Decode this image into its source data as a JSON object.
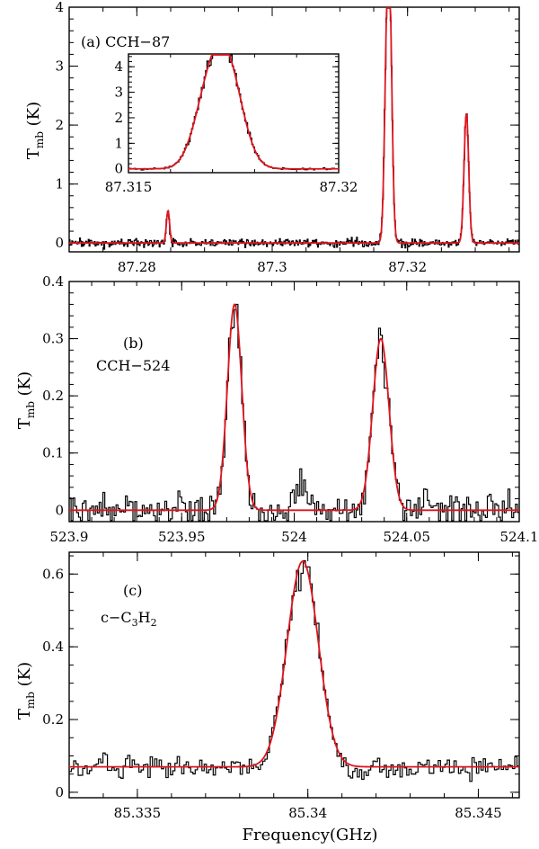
{
  "figure": {
    "xlabel": "Frequency(GHz)",
    "ylabel_main": "T",
    "ylabel_sub": "mb",
    "ylabel_unit": " (K)"
  },
  "colors": {
    "observed": "#000000",
    "fit": "#e0141e"
  },
  "chart_data": [
    {
      "id": "a",
      "type": "line",
      "label": "(a)  CCH−87",
      "xlim": [
        87.27,
        87.3365
      ],
      "ylim": [
        -0.15,
        4.0
      ],
      "xticks": [
        87.28,
        87.3,
        87.32
      ],
      "xtick_labels": [
        "87.28",
        "87.3",
        "87.32"
      ],
      "yticks": [
        0,
        1,
        2,
        3,
        4
      ],
      "ytick_labels": [
        "0",
        "1",
        "2",
        "3",
        "4"
      ],
      "noise_rms": 0.035,
      "baseline": 0.0,
      "lines": [
        {
          "center": 87.2846,
          "amp": 0.55,
          "fwhm": 0.00055
        },
        {
          "center": 87.31688,
          "amp": 2.3,
          "fwhm": 0.0008
        },
        {
          "center": 87.31735,
          "amp": 3.8,
          "fwhm": 0.00085
        },
        {
          "center": 87.32869,
          "amp": 2.2,
          "fwhm": 0.0008
        }
      ],
      "inset": {
        "xlim": [
          87.315,
          87.32
        ],
        "ylim": [
          -0.15,
          4.5
        ],
        "xticks": [
          87.315,
          87.32
        ],
        "xtick_labels": [
          "87.315",
          "87.32"
        ],
        "yticks": [
          0,
          1,
          2,
          3,
          4
        ],
        "ytick_labels": [
          "0",
          "1",
          "2",
          "3",
          "4"
        ]
      },
      "series": [
        {
          "name": "observed",
          "style": "histogram"
        },
        {
          "name": "gaussian fit",
          "style": "line"
        }
      ]
    },
    {
      "id": "b",
      "type": "line",
      "label_line1": "(b)",
      "label_line2": "CCH−524",
      "xlim": [
        523.9,
        524.1
      ],
      "ylim": [
        -0.02,
        0.4
      ],
      "xticks": [
        523.9,
        523.95,
        524.0,
        524.05,
        524.1
      ],
      "xtick_labels": [
        "523.9",
        "523.95",
        "524",
        "524.05",
        "524.1"
      ],
      "yticks": [
        0,
        0.1,
        0.2,
        0.3,
        0.4
      ],
      "ytick_labels": [
        "0",
        "0.1",
        "0.2",
        "0.3",
        "0.4"
      ],
      "noise_rms": 0.015,
      "baseline": 0.0,
      "lines": [
        {
          "center": 523.9735,
          "amp": 0.36,
          "fwhm": 0.0075
        },
        {
          "center": 524.0385,
          "amp": 0.3,
          "fwhm": 0.0085
        }
      ],
      "extra_emission": [
        {
          "center": 524.0035,
          "amp": 0.055,
          "fwhm": 0.006
        }
      ],
      "series": [
        {
          "name": "observed",
          "style": "histogram"
        },
        {
          "name": "gaussian fit",
          "style": "line"
        }
      ]
    },
    {
      "id": "c",
      "type": "line",
      "label_line1": "(c)",
      "label_prefix": "c−C",
      "label_sub1": "3",
      "label_mid": "H",
      "label_sub2": "2",
      "xlim": [
        85.333,
        85.3462
      ],
      "ylim": [
        -0.015,
        0.66
      ],
      "xticks": [
        85.335,
        85.34,
        85.345
      ],
      "xtick_labels": [
        "85.335",
        "85.34",
        "85.345"
      ],
      "yticks": [
        0,
        0.2,
        0.4,
        0.6
      ],
      "ytick_labels": [
        "0",
        "0.2",
        "0.4",
        "0.6"
      ],
      "noise_rms": 0.014,
      "baseline": 0.07,
      "lines": [
        {
          "center": 85.33985,
          "amp": 0.565,
          "fwhm": 0.00108
        }
      ],
      "series": [
        {
          "name": "observed",
          "style": "histogram"
        },
        {
          "name": "gaussian fit",
          "style": "line"
        }
      ]
    }
  ]
}
